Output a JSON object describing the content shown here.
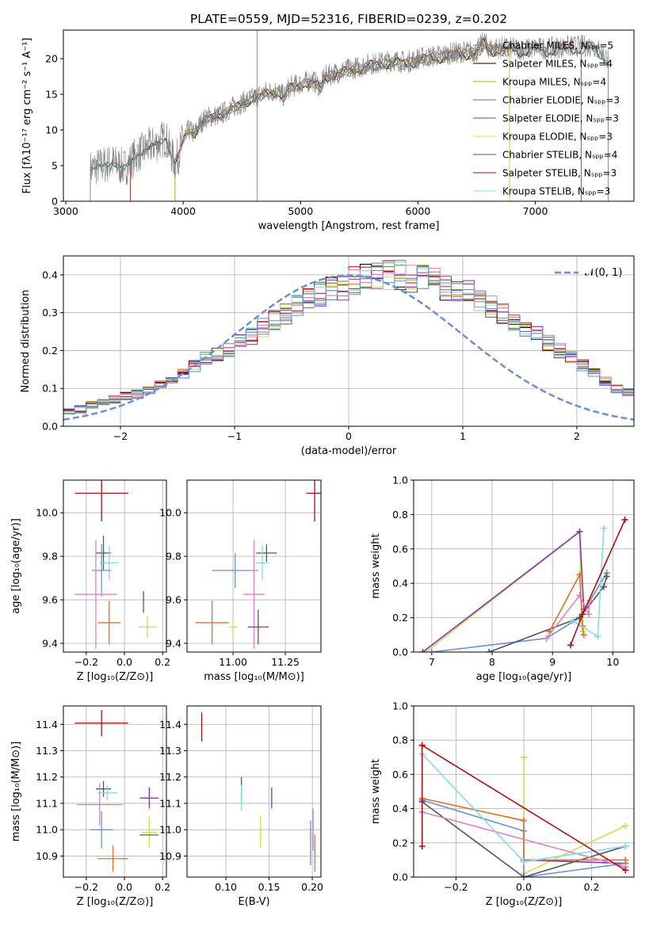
{
  "figure_title": "PLATE=0559, MJD=52316, FIBERID=0239, z=0.202",
  "chart_data": [
    {
      "id": "spectrum",
      "type": "line",
      "xlabel": "wavelength [Angstrom, rest frame]",
      "ylabel": "Flux [fλ10⁻¹⁷ erg cm⁻² s⁻¹ A⁻¹]",
      "xlim": [
        2980,
        7840
      ],
      "ylim": [
        0,
        24
      ],
      "xticks": [
        3000,
        4000,
        5000,
        6000,
        7000
      ],
      "yticks": [
        0,
        5,
        10,
        15,
        20
      ],
      "legend_position": "right",
      "legend": [
        {
          "label": "Chabrier MILES, Nₛₚₚ=5",
          "color": "#808080"
        },
        {
          "label": "Salpeter MILES, Nₛₚₚ=4",
          "color": "#000000"
        },
        {
          "label": "Kroupa MILES, Nₛₚₚ=4",
          "color": "#c8a000"
        },
        {
          "label": "Chabrier ELODIE, Nₛₚₚ=3",
          "color": "#4a8a4a"
        },
        {
          "label": "Salpeter ELODIE, Nₛₚₚ=3",
          "color": "#9030b0"
        },
        {
          "label": "Kroupa ELODIE, Nₛₚₚ=3",
          "color": "#e6e640"
        },
        {
          "label": "Chabrier STELIB, Nₛₚₚ=4",
          "color": "#555555"
        },
        {
          "label": "Salpeter STELIB, Nₛₚₚ=3",
          "color": "#b01010"
        },
        {
          "label": "Kroupa STELIB, Nₛₚₚ=3",
          "color": "#80dce6"
        }
      ],
      "spectrum_x": [
        3210,
        3300,
        3400,
        3500,
        3550,
        3600,
        3700,
        3800,
        3850,
        3900,
        3930,
        3960,
        4000,
        4050,
        4100,
        4150,
        4200,
        4300,
        4400,
        4500,
        4600,
        4700,
        4800,
        4860,
        4900,
        5000,
        5100,
        5175,
        5200,
        5300,
        5400,
        5500,
        5600,
        5700,
        5800,
        5900,
        6000,
        6100,
        6200,
        6300,
        6400,
        6500,
        6563,
        6600,
        6700,
        6800,
        6900,
        7000,
        7100,
        7200,
        7300,
        7400,
        7500,
        7600
      ],
      "spectrum_y": [
        4.5,
        5.0,
        5.4,
        4.7,
        5.5,
        6.5,
        7.5,
        8.3,
        9.0,
        6.5,
        5.5,
        6.5,
        8.8,
        10.0,
        9.5,
        11.0,
        11.8,
        12.0,
        13.0,
        13.8,
        14.5,
        15.3,
        15.5,
        14.7,
        16.0,
        16.5,
        17.0,
        16.0,
        17.5,
        18.0,
        18.5,
        18.8,
        19.3,
        19.5,
        19.8,
        19.5,
        20.0,
        20.3,
        20.5,
        20.8,
        21.0,
        21.0,
        22.5,
        21.5,
        21.5,
        21.5,
        21.3,
        21.5,
        21.4,
        21.6,
        21.7,
        21.8,
        21.8,
        20.2
      ],
      "series_cutoffs": [
        3210,
        3210,
        3930,
        3930,
        3930,
        3930,
        3210,
        3550,
        3210
      ],
      "series_ends": [
        7620,
        7620,
        6780,
        6780,
        6780,
        6780,
        7620,
        7390,
        7620
      ]
    },
    {
      "id": "residuals",
      "type": "step-histogram",
      "xlabel": "(data-model)/error",
      "ylabel": "Normed distribution",
      "xlim": [
        -2.5,
        2.5
      ],
      "ylim": [
        0,
        0.45
      ],
      "xticks": [
        -2,
        -1,
        0,
        1,
        2
      ],
      "yticks": [
        0.0,
        0.1,
        0.2,
        0.3,
        0.4
      ],
      "grid": true,
      "legend_position": "upper right",
      "legend": [
        {
          "label": "𝒩(0, 1)",
          "color": "#6a8fd8"
        }
      ],
      "bin_start": -2.5,
      "bin_width": 0.1,
      "base_values": [
        0.038,
        0.045,
        0.055,
        0.06,
        0.07,
        0.08,
        0.085,
        0.095,
        0.11,
        0.12,
        0.14,
        0.16,
        0.18,
        0.19,
        0.2,
        0.22,
        0.24,
        0.26,
        0.28,
        0.3,
        0.32,
        0.34,
        0.35,
        0.36,
        0.37,
        0.385,
        0.39,
        0.395,
        0.4,
        0.4,
        0.39,
        0.39,
        0.385,
        0.37,
        0.36,
        0.35,
        0.33,
        0.32,
        0.3,
        0.28,
        0.26,
        0.24,
        0.22,
        0.2,
        0.18,
        0.16,
        0.14,
        0.12,
        0.1,
        0.09
      ],
      "series_colors": [
        "#808080",
        "#000000",
        "#e07020",
        "#4a8a4a",
        "#9030b0",
        "#c8e050",
        "#555555",
        "#b01010",
        "#80dce6",
        "#e080c0",
        "#6a8fd8"
      ]
    },
    {
      "id": "age-vs-Z",
      "type": "errorbar",
      "xlabel": "Z [log₁₀(Z/Z⊙)]",
      "ylabel": "age  [log₁₀(age/yr)]",
      "xlim": [
        -0.32,
        0.22
      ],
      "ylim": [
        9.36,
        10.15
      ],
      "xticks": [
        -0.2,
        0.0,
        0.2
      ],
      "yticks": [
        9.4,
        9.6,
        9.8,
        10.0
      ],
      "grid": true,
      "points": [
        {
          "x": -0.12,
          "y": 10.09,
          "xe": 0.14,
          "ye": 0.13,
          "color": "#b01010"
        },
        {
          "x": -0.11,
          "y": 9.815,
          "xe": 0.04,
          "ye": 0.08,
          "color": "#555555"
        },
        {
          "x": -0.08,
          "y": 9.77,
          "xe": 0.05,
          "ye": 0.08,
          "color": "#80dce6"
        },
        {
          "x": -0.12,
          "y": 9.735,
          "xe": 0.05,
          "ye": 0.12,
          "color": "#6a8fd8"
        },
        {
          "x": -0.15,
          "y": 9.625,
          "xe": 0.11,
          "ye": 0.25,
          "color": "#e080c0"
        },
        {
          "x": -0.08,
          "y": 9.495,
          "xe": 0.06,
          "ye": 0.1,
          "color": "#e07020"
        },
        {
          "x": 0.12,
          "y": 9.475,
          "xe": 0.05,
          "ye": 0.05,
          "color": "#c8e050"
        },
        {
          "x": 0.1,
          "y": 9.59,
          "xe": 0.0,
          "ye": 0.05,
          "color": "#9030b0"
        }
      ]
    },
    {
      "id": "age-vs-mass",
      "type": "errorbar",
      "xlabel": "mass [log₁₀(M/M⊙)]",
      "ylabel": "",
      "xlim": [
        10.78,
        11.42
      ],
      "ylim": [
        9.36,
        10.15
      ],
      "xticks": [
        11.0,
        11.25
      ],
      "yticks": [
        9.4,
        9.6,
        9.8,
        10.0
      ],
      "grid": true,
      "points": [
        {
          "x": 11.39,
          "y": 10.09,
          "xe": 0.04,
          "ye": 0.13,
          "color": "#b01010"
        },
        {
          "x": 11.16,
          "y": 9.815,
          "xe": 0.05,
          "ye": 0.04,
          "color": "#555555"
        },
        {
          "x": 11.14,
          "y": 9.77,
          "xe": 0.03,
          "ye": 0.08,
          "color": "#80dce6"
        },
        {
          "x": 11.01,
          "y": 9.735,
          "xe": 0.11,
          "ye": 0.08,
          "color": "#6a8fd8"
        },
        {
          "x": 11.1,
          "y": 9.625,
          "xe": 0.05,
          "ye": 0.25,
          "color": "#e080c0"
        },
        {
          "x": 10.9,
          "y": 9.495,
          "xe": 0.08,
          "ye": 0.1,
          "color": "#e07020"
        },
        {
          "x": 11.0,
          "y": 9.475,
          "xe": 0.02,
          "ye": 0.04,
          "color": "#c8e050"
        },
        {
          "x": 11.12,
          "y": 9.475,
          "xe": 0.05,
          "ye": 0.08,
          "color": "#9030b0"
        }
      ]
    },
    {
      "id": "weight-vs-age",
      "type": "line",
      "xlabel": "age  [log₁₀(age/yr)]",
      "ylabel": "mass weight",
      "xlim": [
        6.7,
        10.35
      ],
      "ylim": [
        0,
        1
      ],
      "xticks": [
        7,
        8,
        9,
        10
      ],
      "yticks": [
        0.0,
        0.2,
        0.4,
        0.6,
        0.8,
        1.0
      ],
      "grid": true,
      "series": [
        {
          "color": "#c8e050",
          "x": [
            6.9,
            9.45,
            9.48,
            9.5
          ],
          "y": [
            0.0,
            0.7,
            0.18,
            0.12
          ]
        },
        {
          "color": "#9030b0",
          "x": [
            6.85,
            9.45,
            9.52
          ],
          "y": [
            0.0,
            0.7,
            0.25
          ]
        },
        {
          "color": "#6a8fd8",
          "x": [
            7.0,
            8.9,
            9.45,
            9.9
          ],
          "y": [
            0.0,
            0.08,
            0.2,
            0.46
          ]
        },
        {
          "color": "#555555",
          "x": [
            7.95,
            9.45,
            9.85,
            9.9
          ],
          "y": [
            0.0,
            0.2,
            0.38,
            0.44
          ]
        },
        {
          "color": "#e07020",
          "x": [
            8.95,
            9.45,
            9.5,
            9.52
          ],
          "y": [
            0.12,
            0.45,
            0.15,
            0.1
          ]
        },
        {
          "color": "#e080c0",
          "x": [
            8.9,
            9.45,
            9.6,
            9.62
          ],
          "y": [
            0.08,
            0.33,
            0.22,
            0.3
          ]
        },
        {
          "color": "#80dce6",
          "x": [
            9.35,
            9.75,
            9.85
          ],
          "y": [
            0.18,
            0.09,
            0.72
          ]
        },
        {
          "color": "#b01010",
          "x": [
            9.3,
            9.5,
            10.2
          ],
          "y": [
            0.04,
            0.22,
            0.77
          ]
        }
      ]
    },
    {
      "id": "mass-vs-Z",
      "type": "errorbar",
      "xlabel": "Z [log₁₀(Z/Z⊙)]",
      "ylabel": "mass [log₁₀(M/M⊙)]",
      "xlim": [
        -0.32,
        0.22
      ],
      "ylim": [
        10.82,
        11.47
      ],
      "xticks": [
        -0.2,
        0.0,
        0.2
      ],
      "yticks": [
        10.9,
        11.0,
        11.1,
        11.2,
        11.3,
        11.4
      ],
      "grid": true,
      "points": [
        {
          "x": -0.12,
          "y": 11.405,
          "xe": 0.14,
          "ye": 0.05,
          "color": "#b01010"
        },
        {
          "x": -0.11,
          "y": 11.155,
          "xe": 0.04,
          "ye": 0.03,
          "color": "#555555"
        },
        {
          "x": -0.09,
          "y": 11.14,
          "xe": 0.05,
          "ye": 0.03,
          "color": "#80dce6"
        },
        {
          "x": -0.12,
          "y": 11.0,
          "xe": 0.06,
          "ye": 0.07,
          "color": "#6a8fd8"
        },
        {
          "x": -0.13,
          "y": 11.095,
          "xe": 0.12,
          "ye": 0.08,
          "color": "#e080c0"
        },
        {
          "x": -0.06,
          "y": 10.89,
          "xe": 0.08,
          "ye": 0.05,
          "color": "#e07020"
        },
        {
          "x": 0.13,
          "y": 10.99,
          "xe": 0.04,
          "ye": 0.06,
          "color": "#c8e050"
        },
        {
          "x": 0.13,
          "y": 11.12,
          "xe": 0.05,
          "ye": 0.04,
          "color": "#9030b0"
        },
        {
          "x": 0.13,
          "y": 10.98,
          "xe": 0.05,
          "ye": 0.0,
          "color": "#4a8a4a"
        }
      ]
    },
    {
      "id": "mass-vs-ebv",
      "type": "errorbar",
      "xlabel": "E(B-V)",
      "ylabel": "",
      "xlim": [
        0.055,
        0.21
      ],
      "ylim": [
        10.82,
        11.47
      ],
      "xticks": [
        0.1,
        0.15,
        0.2
      ],
      "yticks": [
        10.9,
        11.0,
        11.1,
        11.2,
        11.3,
        11.4
      ],
      "grid": true,
      "points": [
        {
          "x": 0.072,
          "y": 11.39,
          "xe": 0.0,
          "ye": 0.055,
          "color": "#b01010"
        },
        {
          "x": 0.118,
          "y": 11.15,
          "xe": 0.0,
          "ye": 0.05,
          "color": "#555555"
        },
        {
          "x": 0.118,
          "y": 11.12,
          "xe": 0.0,
          "ye": 0.05,
          "color": "#80dce6"
        },
        {
          "x": 0.153,
          "y": 11.12,
          "xe": 0.0,
          "ye": 0.04,
          "color": "#9030b0"
        },
        {
          "x": 0.14,
          "y": 10.99,
          "xe": 0.0,
          "ye": 0.06,
          "color": "#c8e050"
        },
        {
          "x": 0.198,
          "y": 10.95,
          "xe": 0.0,
          "ye": 0.085,
          "color": "#6a8fd8"
        },
        {
          "x": 0.201,
          "y": 11.0,
          "xe": 0.0,
          "ye": 0.08,
          "color": "#e080c0"
        },
        {
          "x": 0.203,
          "y": 10.91,
          "xe": 0.0,
          "ye": 0.07,
          "color": "#e07020"
        }
      ]
    },
    {
      "id": "weight-vs-Z",
      "type": "line",
      "xlabel": "Z [log₁₀(Z/Z⊙)]",
      "ylabel": "mass weight",
      "xlim": [
        -0.325,
        0.325
      ],
      "ylim": [
        0,
        1
      ],
      "xticks": [
        -0.2,
        0.0,
        0.2
      ],
      "yticks": [
        0.0,
        0.2,
        0.4,
        0.6,
        0.8,
        1.0
      ],
      "grid": true,
      "series": [
        {
          "color": "#c8e050",
          "x": [
            0.0,
            0.0,
            0.0,
            0.3
          ],
          "y": [
            0.7,
            0.0,
            0.02,
            0.3
          ]
        },
        {
          "color": "#9030b0",
          "x": [
            0.0,
            0.3
          ],
          "y": [
            0.1,
            0.08
          ]
        },
        {
          "color": "#6a8fd8",
          "x": [
            -0.3,
            0.0,
            0.0,
            0.3
          ],
          "y": [
            0.45,
            0.27,
            0.0,
            0.08
          ]
        },
        {
          "color": "#555555",
          "x": [
            -0.3,
            0.0,
            0.3
          ],
          "y": [
            0.44,
            0.0,
            0.18
          ]
        },
        {
          "color": "#e07020",
          "x": [
            -0.3,
            0.0,
            0.0,
            0.3
          ],
          "y": [
            0.46,
            0.33,
            0.1,
            0.1
          ]
        },
        {
          "color": "#e080c0",
          "x": [
            -0.3,
            0.3
          ],
          "y": [
            0.38,
            0.06
          ]
        },
        {
          "color": "#80dce6",
          "x": [
            -0.3,
            0.0,
            0.3
          ],
          "y": [
            0.72,
            0.09,
            0.18
          ]
        },
        {
          "color": "#b01010",
          "x": [
            -0.3,
            -0.3,
            -0.3,
            0.3
          ],
          "y": [
            0.18,
            0.77,
            0.77,
            0.04
          ]
        }
      ]
    }
  ]
}
